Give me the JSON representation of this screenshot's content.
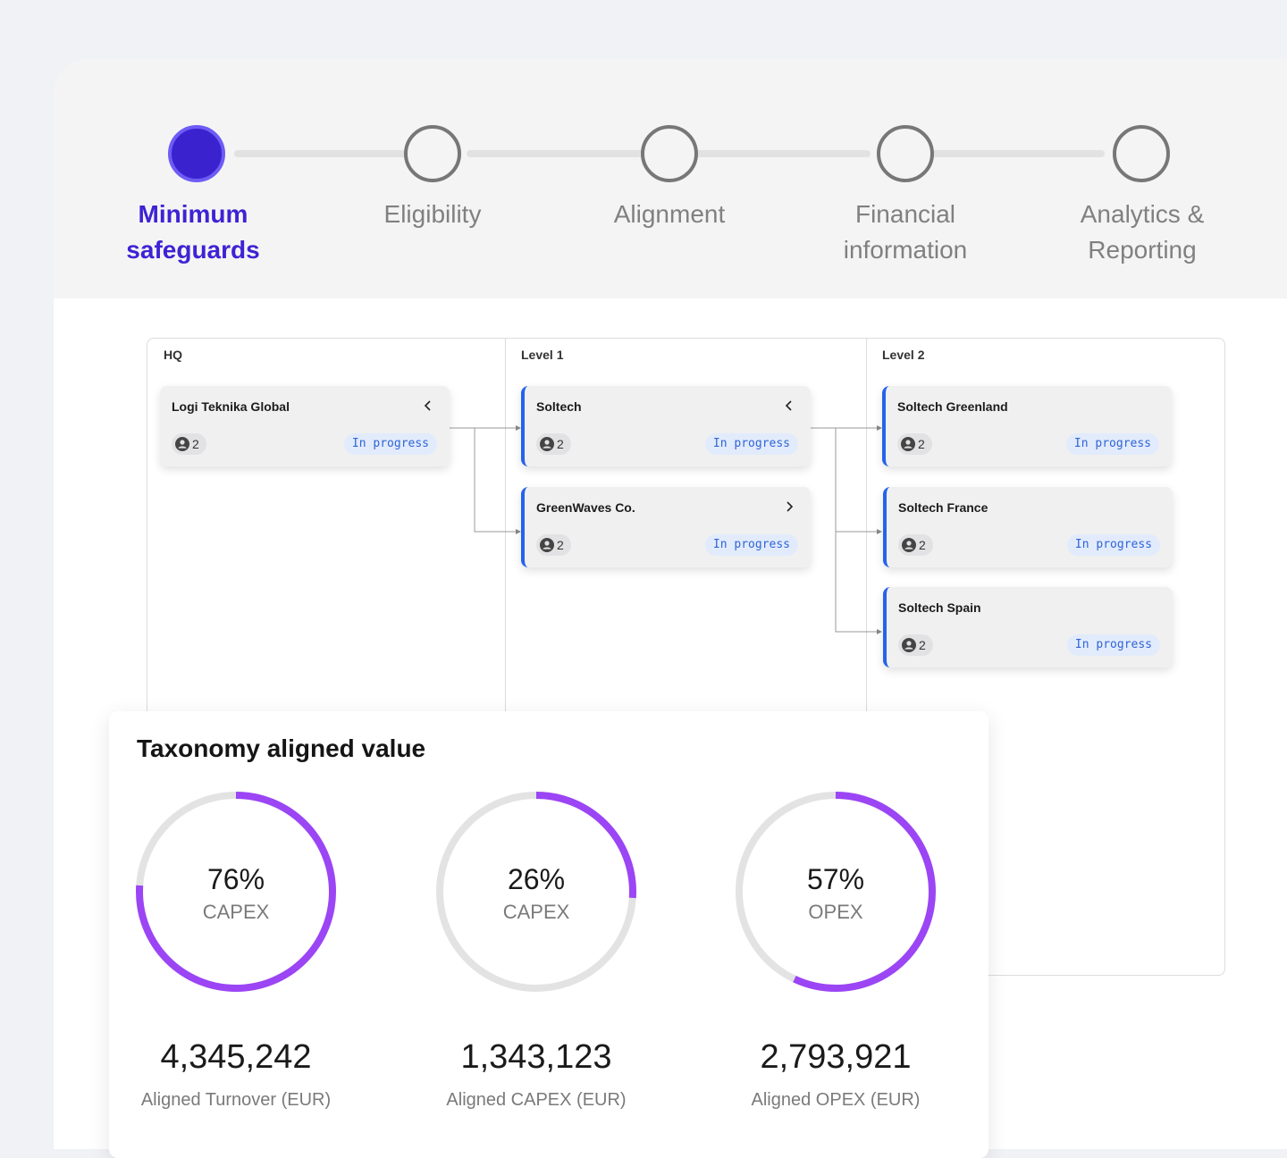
{
  "stepper": {
    "steps": [
      {
        "label": "Minimum safeguards",
        "active": true
      },
      {
        "label": "Eligibility",
        "active": false
      },
      {
        "label": "Alignment",
        "active": false
      },
      {
        "label": "Financial information",
        "active": false
      },
      {
        "label": "Analytics & Reporting",
        "active": false
      }
    ]
  },
  "tree": {
    "columns": [
      "HQ",
      "Level 1",
      "Level 2"
    ],
    "nodes": [
      {
        "name": "Logi Teknika Global",
        "users": "2",
        "status": "In progress",
        "chevron": "chevron-left-icon"
      },
      {
        "name": "Soltech",
        "users": "2",
        "status": "In progress",
        "chevron": "chevron-left-icon"
      },
      {
        "name": "GreenWaves Co.",
        "users": "2",
        "status": "In progress",
        "chevron": "chevron-right-icon"
      },
      {
        "name": "Soltech Greenland",
        "users": "2",
        "status": "In progress"
      },
      {
        "name": "Soltech France",
        "users": "2",
        "status": "In progress"
      },
      {
        "name": "Soltech Spain",
        "users": "2",
        "status": "In progress"
      }
    ]
  },
  "kpi": {
    "title": "Taxonomy aligned value",
    "items": [
      {
        "percent": 76,
        "percent_label": "76%",
        "caption": "CAPEX",
        "amount": "4,345,242",
        "label": "Aligned Turnover (EUR)"
      },
      {
        "percent": 26,
        "percent_label": "26%",
        "caption": "CAPEX",
        "amount": "1,343,123",
        "label": "Aligned CAPEX (EUR)"
      },
      {
        "percent": 57,
        "percent_label": "57%",
        "caption": "OPEX",
        "amount": "2,793,921",
        "label": "Aligned OPEX (EUR)"
      }
    ]
  },
  "colors": {
    "accent": "#3b22cf",
    "ring_fill": "#9b45f5",
    "ring_track": "#e3e3e3",
    "status_text": "#2f64d8",
    "card_border": "#2563eb"
  }
}
